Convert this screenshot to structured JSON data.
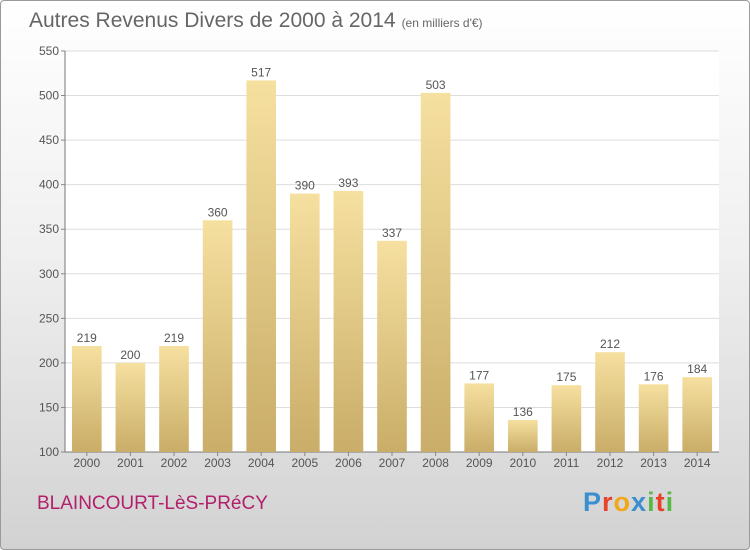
{
  "header": {
    "title": "Autres Revenus Divers de 2000 à 2014",
    "unit": "(en milliers d'€)"
  },
  "footer": {
    "place": "BLAINCOURT-LèS-PRéCY",
    "logo_text": "Proxiti",
    "logo_colors": [
      "#3b8fd0",
      "#e8412a",
      "#f2a61a",
      "#3b8fd0",
      "#58b947",
      "#e8412a",
      "#58b947"
    ]
  },
  "chart_data": {
    "type": "bar",
    "title": "Autres Revenus Divers de 2000 à 2014",
    "subtitle": "(en milliers d'€)",
    "categories": [
      "2000",
      "2001",
      "2002",
      "2003",
      "2004",
      "2005",
      "2006",
      "2007",
      "2008",
      "2009",
      "2010",
      "2011",
      "2012",
      "2013",
      "2014"
    ],
    "values": [
      219,
      200,
      219,
      360,
      517,
      390,
      393,
      337,
      503,
      177,
      136,
      175,
      212,
      176,
      184
    ],
    "xlabel": "",
    "ylabel": "",
    "ylim": [
      100,
      550
    ],
    "yticks": [
      100,
      150,
      200,
      250,
      300,
      350,
      400,
      450,
      500,
      550
    ],
    "grid": true,
    "bar_color_light": "#f6e0a0",
    "bar_color_dark": "#c9ad68",
    "grid_color": "#dddddd",
    "text_color": "#555555"
  }
}
